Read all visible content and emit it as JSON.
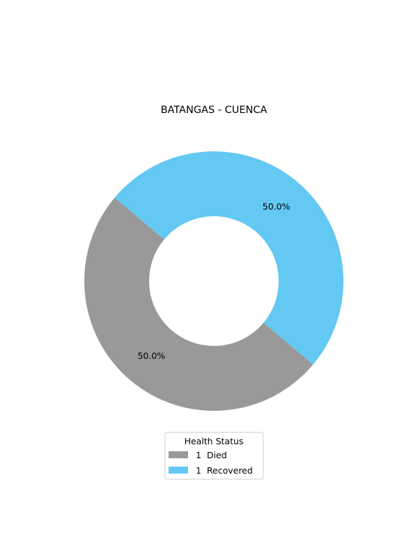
{
  "chart_data": {
    "type": "pie",
    "title": "BATANGAS - CUENCA",
    "donut": true,
    "slices": [
      {
        "label": "Died",
        "count": "1",
        "value": 1,
        "percent_label": "50.0%",
        "color": "#999999"
      },
      {
        "label": "Recovered",
        "count": "1",
        "value": 1,
        "percent_label": "50.0%",
        "color": "#63c8f2"
      }
    ],
    "start_angle_deg": 140,
    "direction": "counterclockwise",
    "legend": {
      "title": "Health Status",
      "placement": "bottom-center"
    }
  }
}
